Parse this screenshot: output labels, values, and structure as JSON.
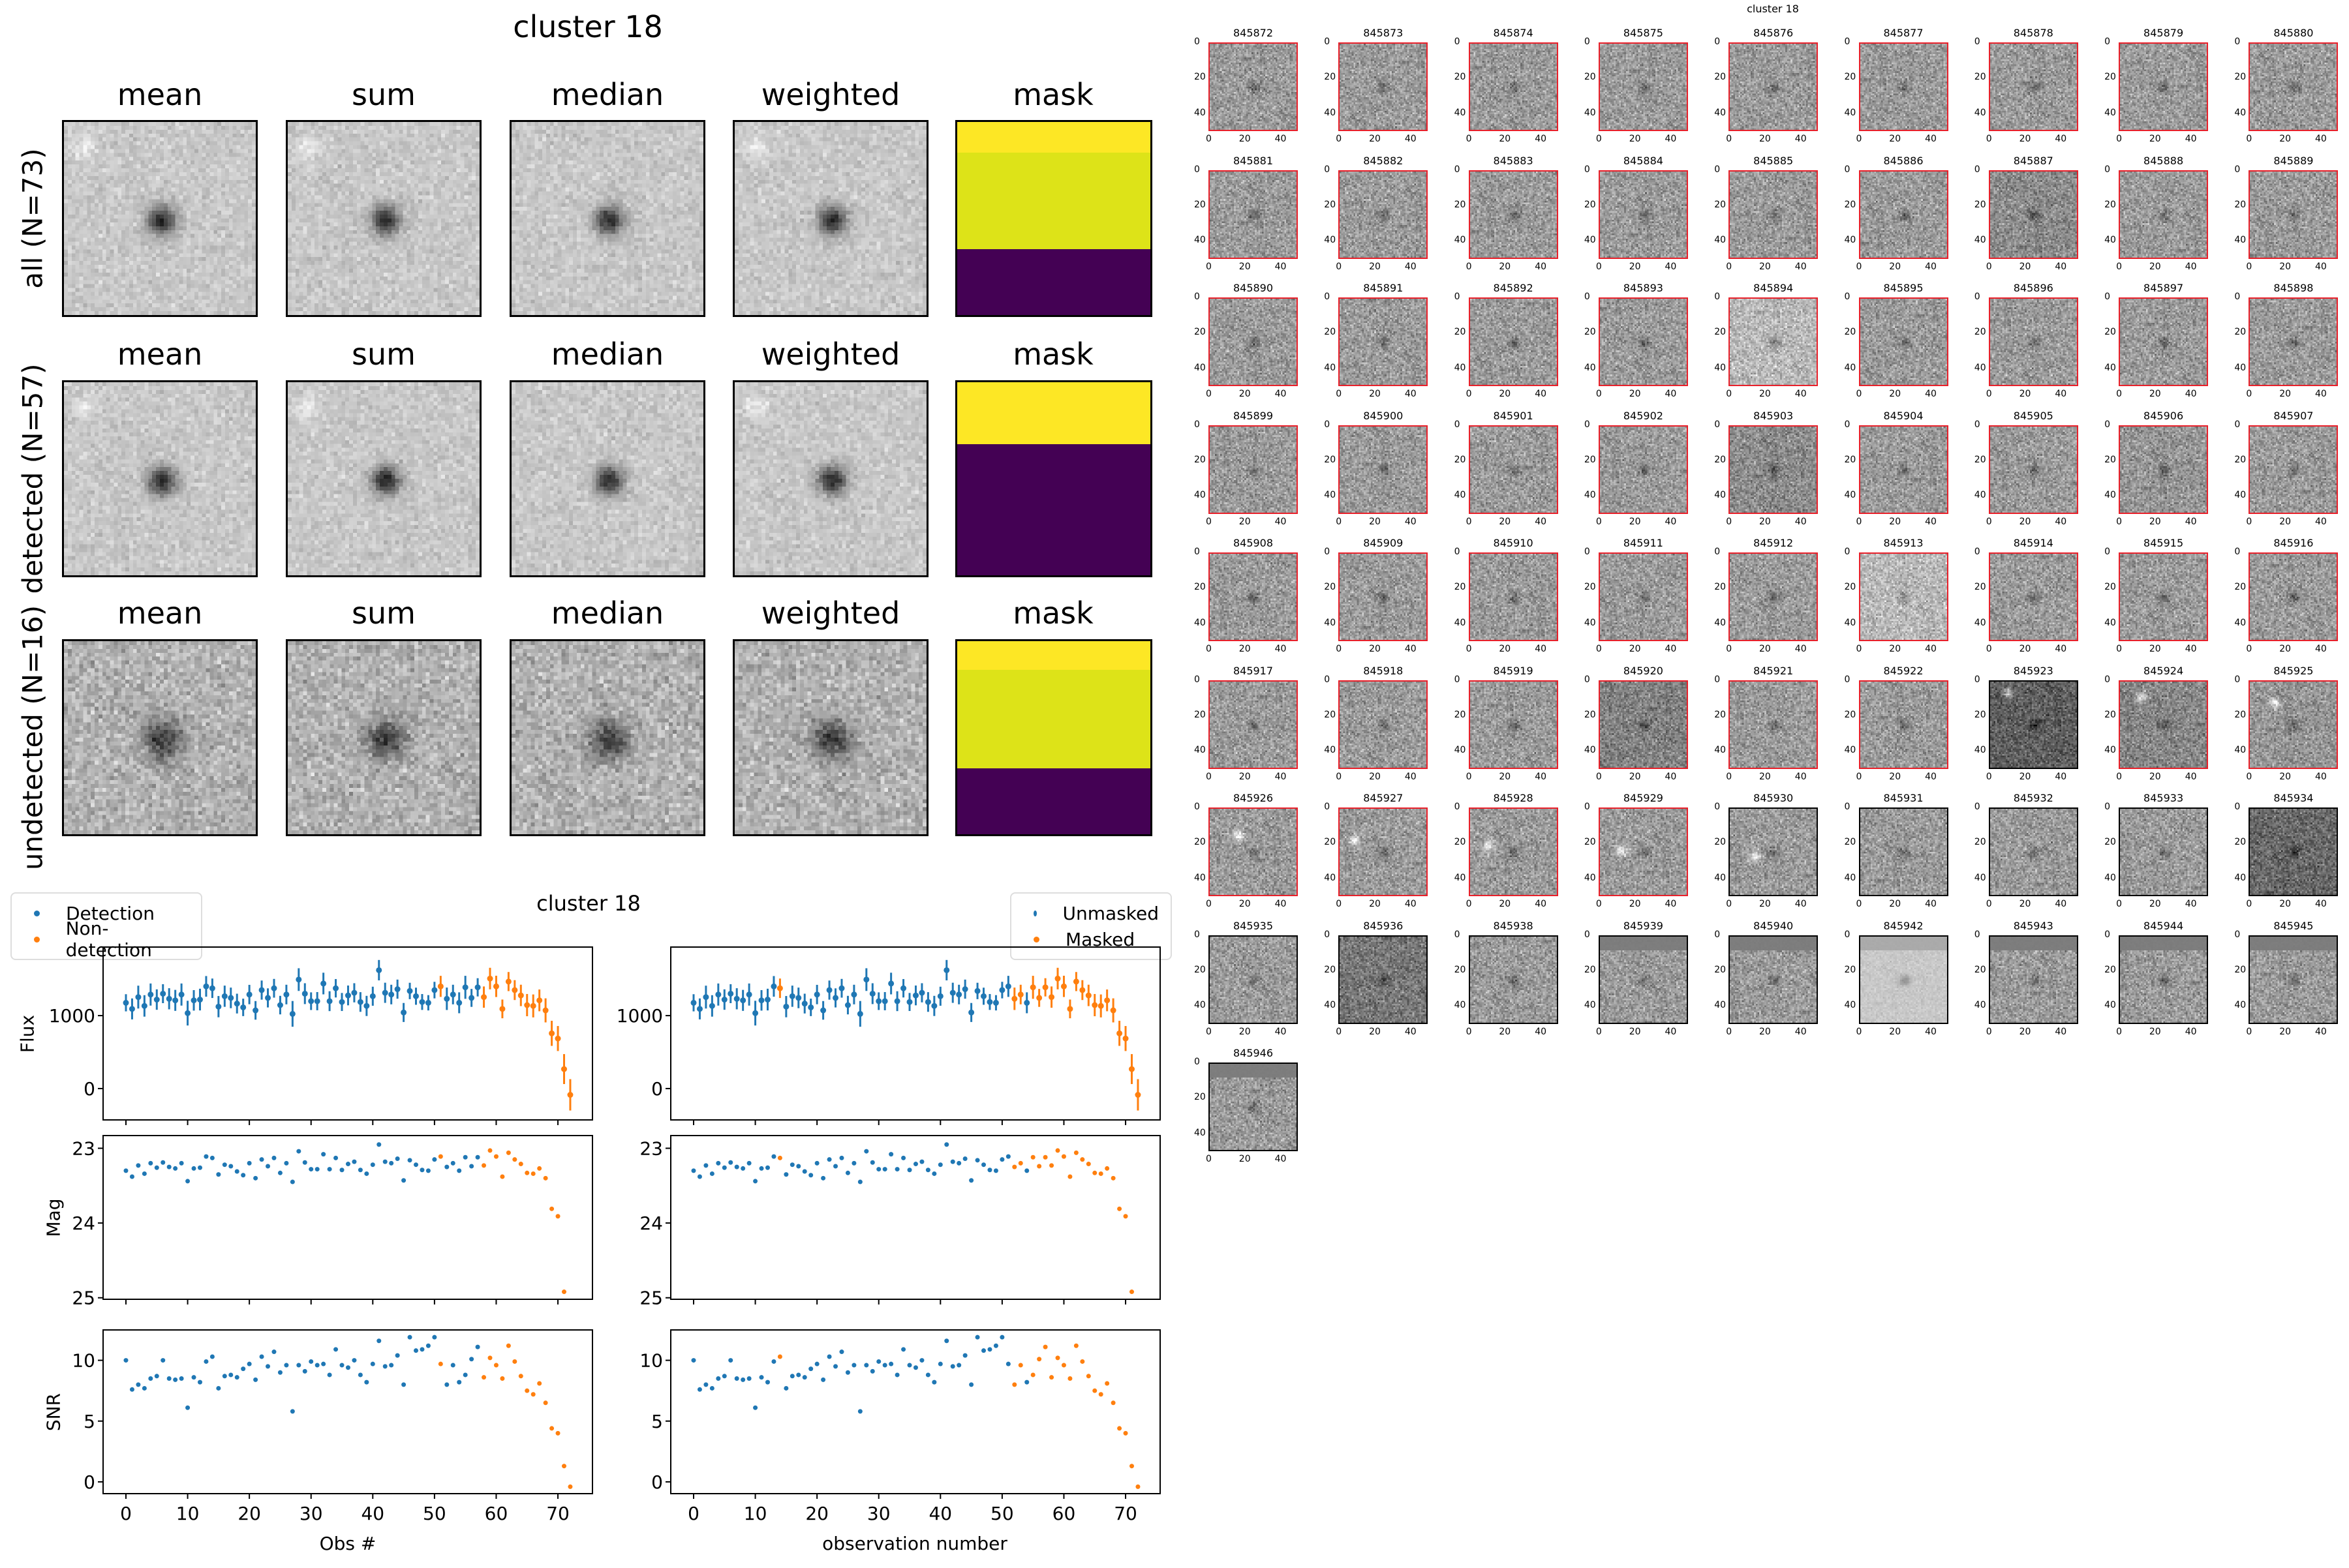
{
  "figure_title": "cluster 18",
  "stack_panels": {
    "column_titles": [
      "mean",
      "sum",
      "median",
      "weighted",
      "mask"
    ],
    "rows": [
      {
        "label": "all (N=73)",
        "mask_bands": [
          {
            "color": "#fde725",
            "fraction": 0.16
          },
          {
            "color": "#dde318",
            "fraction": 0.5
          },
          {
            "color": "#440154",
            "fraction": 0.34
          }
        ]
      },
      {
        "label": "detected (N=57)",
        "mask_bands": [
          {
            "color": "#fde725",
            "fraction": 0.32
          },
          {
            "color": "#440154",
            "fraction": 0.68
          }
        ]
      },
      {
        "label": "undetected (N=16)",
        "mask_bands": [
          {
            "color": "#fde725",
            "fraction": 0.15
          },
          {
            "color": "#dde318",
            "fraction": 0.51
          },
          {
            "color": "#440154",
            "fraction": 0.34
          }
        ]
      }
    ]
  },
  "lightcurve_title": "cluster 18",
  "legends": {
    "left": [
      {
        "label": "Detection",
        "color": "#1f77b4"
      },
      {
        "label": "Non-detection",
        "color": "#ff7f0e"
      }
    ],
    "right": [
      {
        "label": "Unmasked",
        "color": "#1f77b4"
      },
      {
        "label": "Masked",
        "color": "#ff7f0e"
      }
    ]
  },
  "axis_labels": {
    "flux": "Flux",
    "mag": "Mag",
    "snr": "SNR",
    "x_left": "Obs #",
    "x_right": "observation number"
  },
  "chart_data": {
    "type": "scatter",
    "x_ticks": [
      "0",
      "10",
      "20",
      "30",
      "40",
      "50",
      "60",
      "70"
    ],
    "xlim": [
      -3.7,
      75.6
    ],
    "panels": {
      "flux": {
        "ylim": [
          -430,
          1940
        ],
        "y_ticks": [
          "0",
          "1000"
        ],
        "error_bars": true
      },
      "mag": {
        "ylim": [
          25.02,
          22.83
        ],
        "y_ticks": [
          "23",
          "24",
          "25"
        ],
        "inverted": true
      },
      "snr": {
        "ylim": [
          -0.97,
          12.5
        ],
        "y_ticks": [
          "0",
          "5",
          "10"
        ]
      }
    },
    "obs": [
      0,
      1,
      2,
      3,
      4,
      5,
      6,
      7,
      8,
      9,
      10,
      11,
      12,
      13,
      14,
      15,
      16,
      17,
      18,
      19,
      20,
      21,
      22,
      23,
      24,
      25,
      26,
      27,
      28,
      29,
      30,
      31,
      32,
      33,
      34,
      35,
      36,
      37,
      38,
      39,
      40,
      41,
      42,
      43,
      44,
      45,
      46,
      47,
      48,
      49,
      50,
      51,
      52,
      53,
      54,
      55,
      56,
      57,
      58,
      59,
      60,
      61,
      62,
      63,
      64,
      65,
      66,
      67,
      68,
      69,
      70,
      71,
      72
    ],
    "flux": [
      1176,
      1092,
      1254,
      1133,
      1289,
      1220,
      1301,
      1231,
      1209,
      1289,
      1034,
      1209,
      1220,
      1401,
      1375,
      1123,
      1266,
      1243,
      1165,
      1113,
      1289,
      1072,
      1350,
      1243,
      1375,
      1144,
      1289,
      1024,
      1494,
      1301,
      1198,
      1198,
      1440,
      1198,
      1375,
      1187,
      1277,
      1313,
      1187,
      1133,
      1266,
      1623,
      1313,
      1289,
      1363,
      1043,
      1338,
      1266,
      1187,
      1176,
      1350,
      1401,
      1231,
      1289,
      1176,
      1388,
      1243,
      1388,
      1254,
      1508,
      1401,
      1092,
      1467,
      1350,
      1277,
      1144,
      1133,
      1209,
      1072,
      757,
      686,
      267,
      -86
    ],
    "mag": [
      23.3,
      23.38,
      23.23,
      23.34,
      23.2,
      23.26,
      23.19,
      23.25,
      23.27,
      23.2,
      23.44,
      23.27,
      23.26,
      23.11,
      23.13,
      23.35,
      23.22,
      23.24,
      23.31,
      23.36,
      23.2,
      23.4,
      23.15,
      23.24,
      23.13,
      23.33,
      23.2,
      23.45,
      23.04,
      23.19,
      23.28,
      23.28,
      23.08,
      23.28,
      23.13,
      23.29,
      23.21,
      23.18,
      23.29,
      23.34,
      23.22,
      22.95,
      23.18,
      23.2,
      23.14,
      23.43,
      23.16,
      23.22,
      23.29,
      23.3,
      23.15,
      23.11,
      23.25,
      23.2,
      23.3,
      23.12,
      23.24,
      23.12,
      23.23,
      23.03,
      23.11,
      23.38,
      23.06,
      23.15,
      23.21,
      23.33,
      23.34,
      23.27,
      23.4,
      23.81,
      23.91,
      24.92,
      null
    ],
    "snr": [
      10.0,
      7.6,
      8.0,
      7.7,
      8.5,
      8.7,
      10.0,
      8.5,
      8.4,
      8.5,
      6.1,
      8.6,
      8.2,
      9.9,
      10.3,
      7.7,
      8.7,
      8.8,
      8.6,
      9.3,
      9.7,
      8.4,
      10.3,
      9.5,
      10.7,
      9.0,
      9.6,
      5.8,
      9.6,
      9.1,
      9.9,
      9.6,
      9.7,
      8.8,
      10.9,
      9.6,
      9.4,
      10.0,
      8.8,
      8.2,
      9.7,
      11.6,
      9.5,
      9.6,
      10.4,
      8.0,
      11.9,
      10.8,
      10.9,
      11.2,
      11.9,
      9.7,
      8.0,
      9.6,
      8.2,
      8.8,
      10.1,
      11.1,
      8.6,
      10.2,
      9.6,
      8.5,
      11.2,
      9.9,
      8.7,
      7.5,
      7.2,
      8.1,
      6.5,
      4.4,
      4.0,
      1.3,
      -0.4
    ],
    "nondetection_indices": [
      51,
      58,
      59,
      60,
      61,
      62,
      63,
      64,
      65,
      66,
      67,
      68,
      69,
      70,
      71,
      72
    ],
    "masked_indices": [
      14,
      52,
      53,
      55,
      56,
      57,
      58,
      59,
      60,
      61,
      62,
      63,
      64,
      65,
      66,
      67,
      68,
      69,
      70,
      71,
      72
    ],
    "colors": {
      "primary": "#1f77b4",
      "secondary": "#ff7f0e"
    }
  },
  "cutouts": {
    "title": "cluster 18",
    "tick_labels": [
      "0",
      "20",
      "40"
    ],
    "detected_border_color": "#e8202a",
    "ids": [
      "845872",
      "845873",
      "845874",
      "845875",
      "845876",
      "845877",
      "845878",
      "845879",
      "845880",
      "845881",
      "845882",
      "845883",
      "845884",
      "845885",
      "845886",
      "845887",
      "845888",
      "845889",
      "845890",
      "845891",
      "845892",
      "845893",
      "845894",
      "845895",
      "845896",
      "845897",
      "845898",
      "845899",
      "845900",
      "845901",
      "845902",
      "845903",
      "845904",
      "845905",
      "845906",
      "845907",
      "845908",
      "845909",
      "845910",
      "845911",
      "845912",
      "845913",
      "845914",
      "845915",
      "845916",
      "845917",
      "845918",
      "845919",
      "845920",
      "845921",
      "845922",
      "845923",
      "845924",
      "845925",
      "845926",
      "845927",
      "845928",
      "845929",
      "845930",
      "845931",
      "845932",
      "845933",
      "845934",
      "845935",
      "845936",
      "845938",
      "845939",
      "845940",
      "845942",
      "845943",
      "845944",
      "845945",
      "845946"
    ]
  }
}
